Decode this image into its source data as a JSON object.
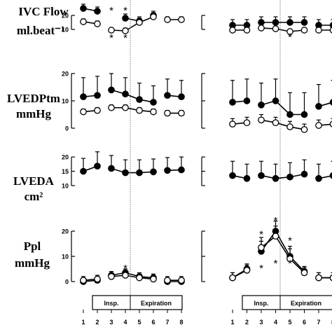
{
  "chart_data": {
    "type": "line",
    "x_ticks": [
      "1",
      "2",
      "3",
      "4",
      "5",
      "6",
      "7",
      "8"
    ],
    "phase_labels": {
      "insp": "Insp.",
      "exp": "Expiration"
    },
    "panels": [
      {
        "row": 0,
        "label_lines": [
          "IVC Flow",
          "ml.beat⁻¹"
        ],
        "y_ticks": [
          "10",
          "20"
        ],
        "ylim": [
          6,
          26
        ],
        "left": {
          "series": [
            {
              "marker": "filled",
              "segments": [
                [
                  1,
                  2
                ],
                [
                  3,
                  5
                ]
              ],
              "values": [
                25,
                23,
                null,
                18,
                16,
                20,
                null,
                null
              ],
              "err": [
                3,
                3,
                null,
                3,
                3,
                3,
                null,
                null
              ]
            },
            {
              "marker": "open",
              "segments": [
                [
                  1,
                  2
                ],
                [
                  3,
                  4
                ],
                [
                  4,
                  6
                ],
                [
                  7,
                  8
                ]
              ],
              "values": [
                15.5,
                14,
                9.5,
                9,
                15,
                19,
                17,
                17
              ],
              "err": [
                2,
                2,
                1.5,
                2,
                3,
                3,
                2,
                2
              ]
            }
          ],
          "stars": [
            {
              "x": 3,
              "y": 24,
              "t": "*"
            },
            {
              "x": 4,
              "y": 24,
              "t": "*"
            },
            {
              "x": 3,
              "y": 4.5,
              "t": "*"
            },
            {
              "x": 4,
              "y": 4.5,
              "t": "*"
            }
          ]
        },
        "right": {
          "series": [
            {
              "marker": "filled",
              "segments": [
                [
                  1,
                  2
                ],
                [
                  3,
                  6
                ],
                [
                  7,
                  8
                ]
              ],
              "values": [
                13,
                13,
                15,
                15,
                15,
                15,
                13,
                13
              ],
              "err": [
                4,
                4,
                4,
                4,
                4,
                4,
                4,
                4
              ]
            },
            {
              "marker": "open",
              "segments": [
                [
                  1,
                  2
                ],
                [
                  3,
                  6
                ],
                [
                  7,
                  8
                ]
              ],
              "values": [
                9.5,
                9.5,
                11,
                10.5,
                8.5,
                9.5,
                9.5,
                9.5
              ],
              "err": [
                2,
                2,
                1.5,
                1.5,
                1.5,
                1.5,
                1.5,
                1.5
              ]
            }
          ],
          "stars": [
            {
              "x": 5,
              "y": 5,
              "t": "*"
            }
          ]
        }
      },
      {
        "row": 1,
        "label_lines": [
          "LVEDPtm",
          "mmHg"
        ],
        "y_ticks": [
          "0",
          "10",
          "20"
        ],
        "ylim": [
          0,
          20
        ],
        "left": {
          "series": [
            {
              "marker": "filled",
              "segments": [
                [
                  1,
                  2
                ],
                [
                  3,
                  6
                ],
                [
                  7,
                  8
                ]
              ],
              "values": [
                11.5,
                12,
                14,
                12.5,
                10.5,
                9.5,
                12,
                11.5
              ],
              "err": [
                7,
                7,
                6,
                6,
                6,
                6,
                6,
                6
              ]
            },
            {
              "marker": "open",
              "segments": [
                [
                  1,
                  2
                ],
                [
                  3,
                  6
                ],
                [
                  7,
                  8
                ]
              ],
              "values": [
                6,
                6.5,
                7.5,
                7.5,
                6.5,
                6,
                5.5,
                5.5
              ],
              "err": [
                1,
                1,
                1,
                1,
                1,
                1,
                1,
                1
              ]
            }
          ],
          "stars": []
        },
        "right": {
          "series": [
            {
              "marker": "filled",
              "segments": [
                [
                  1,
                  2
                ],
                [
                  3,
                  6
                ],
                [
                  7,
                  8
                ]
              ],
              "values": [
                9.5,
                10,
                8.5,
                10,
                5,
                5,
                8,
                9.5
              ],
              "err": [
                8,
                8,
                8,
                8,
                8,
                8,
                8,
                8
              ]
            },
            {
              "marker": "open",
              "segments": [
                [
                  1,
                  2
                ],
                [
                  3,
                  6
                ],
                [
                  7,
                  8
                ]
              ],
              "values": [
                1.5,
                2,
                3,
                2,
                0.5,
                -0.5,
                1,
                1.5
              ],
              "err": [
                2,
                2,
                2,
                2,
                2,
                2,
                2,
                2
              ]
            }
          ],
          "stars": []
        }
      },
      {
        "row": 2,
        "label_lines": [
          "LVEDA",
          "cm²"
        ],
        "y_ticks": [
          "10",
          "15",
          "20"
        ],
        "ylim": [
          10,
          21
        ],
        "left": {
          "series": [
            {
              "marker": "filled",
              "segments": [
                [
                  1,
                  2
                ],
                [
                  3,
                  6
                ],
                [
                  7,
                  8
                ]
              ],
              "values": [
                15,
                16.8,
                16,
                14.5,
                14.5,
                14.8,
                15.3,
                15.5
              ],
              "err": [
                4.5,
                5,
                4.5,
                4.5,
                4.5,
                4.5,
                4.5,
                4.5
              ]
            }
          ],
          "stars": []
        },
        "right": {
          "series": [
            {
              "marker": "filled",
              "segments": [
                [
                  1,
                  2
                ],
                [
                  3,
                  6
                ],
                [
                  7,
                  8
                ]
              ],
              "values": [
                13.5,
                12.5,
                13.5,
                12.5,
                13,
                14,
                12.5,
                13.5
              ],
              "err": [
                5,
                5,
                5,
                5,
                5,
                5,
                5,
                5
              ]
            }
          ],
          "stars": []
        }
      },
      {
        "row": 3,
        "label_lines": [
          "Ppl",
          "mmHg"
        ],
        "y_ticks": [
          "0",
          "10",
          "20"
        ],
        "ylim": [
          0,
          20
        ],
        "left": {
          "series": [
            {
              "marker": "filled",
              "segments": [
                [
                  1,
                  2
                ],
                [
                  3,
                  6
                ],
                [
                  7,
                  8
                ]
              ],
              "values": [
                0,
                0.5,
                2.5,
                3.5,
                2,
                1.5,
                0,
                0
              ],
              "err": [
                1.5,
                1.5,
                1.5,
                1.5,
                1.5,
                1.5,
                1.5,
                1.5
              ]
            },
            {
              "marker": "open",
              "segments": [
                [
                  1,
                  2
                ],
                [
                  3,
                  6
                ],
                [
                  7,
                  8
                ]
              ],
              "values": [
                0.5,
                1,
                2,
                2.5,
                1.5,
                1,
                0.5,
                0.5
              ],
              "err": [
                1.5,
                1.5,
                1.5,
                1.5,
                1.5,
                1.5,
                1.5,
                1.5
              ]
            }
          ],
          "stars": [
            {
              "x": 4,
              "y": 5.5,
              "t": "*"
            }
          ]
        },
        "right": {
          "series": [
            {
              "marker": "filled",
              "segments": [
                [
                  1,
                  2
                ],
                [
                  3,
                  6
                ],
                [
                  7,
                  8
                ]
              ],
              "values": [
                1.5,
                5,
                12,
                20,
                10,
                4,
                1.5,
                1.5
              ],
              "err": [
                2,
                2,
                4,
                4,
                4,
                2,
                2,
                2
              ]
            },
            {
              "marker": "open",
              "segments": [
                [
                  1,
                  2
                ],
                [
                  3,
                  6
                ],
                [
                  7,
                  8
                ]
              ],
              "values": [
                1.5,
                4.5,
                13.5,
                18,
                9,
                3.5,
                1.5,
                1.5
              ],
              "err": [
                2,
                2,
                4,
                4,
                4,
                2,
                2,
                2
              ]
            }
          ],
          "stars": [
            {
              "x": 3,
              "y": 19,
              "t": "*"
            },
            {
              "x": 4,
              "y": 24.5,
              "t": "*"
            },
            {
              "x": 5,
              "y": 16.5,
              "t": "*"
            },
            {
              "x": 3,
              "y": 5.5,
              "t": "*"
            },
            {
              "x": 4,
              "y": 7.5,
              "t": "*"
            },
            {
              "x": 5,
              "y": 7.5,
              "t": "*"
            }
          ]
        }
      }
    ]
  }
}
